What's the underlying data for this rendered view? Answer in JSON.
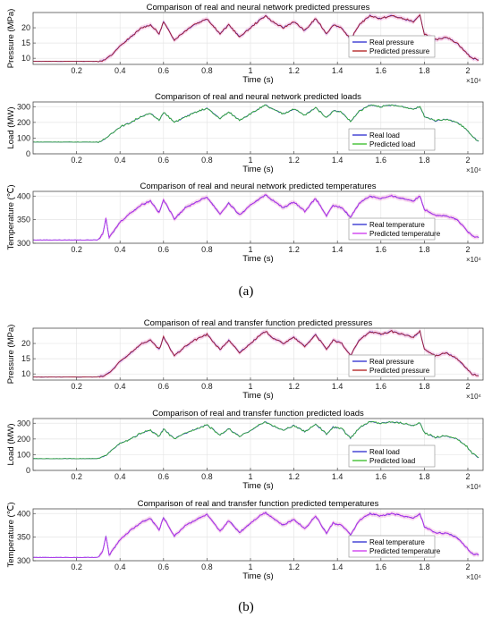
{
  "figure": {
    "caption_a": "(a)",
    "caption_b": "(b)"
  },
  "colors": {
    "real_blue": "#2b2bd0",
    "pred_red": "#b01a1a",
    "pred_green": "#33bb22",
    "pred_magenta": "#cc33ee",
    "band_pink": "#f6c9e8",
    "grid": "#e6e6e6",
    "axis": "#4d4d4d"
  },
  "chart_data": [
    {
      "type": "line",
      "panel": "a",
      "title": "Comparison of real and neural network predicted pressures",
      "xlabel": "Time (s)",
      "ylabel": "Pressure (MPa)",
      "xlim": [
        0,
        20700
      ],
      "ylim": [
        8,
        25
      ],
      "xticks": [
        0.2,
        0.4,
        0.6,
        0.8,
        1,
        1.2,
        1.4,
        1.6,
        1.8,
        2
      ],
      "x_multiplier_label": "×10⁴",
      "yticks": [
        10,
        15,
        20
      ],
      "legend_position": "top-right",
      "series": [
        {
          "name": "Real pressure",
          "color": "#2b2bd0"
        },
        {
          "name": "Predicted pressure",
          "color": "#b01a1a",
          "band": true
        }
      ],
      "x": [
        0,
        1000,
        2000,
        3000,
        3300,
        3600,
        4000,
        4500,
        5000,
        5400,
        5800,
        6000,
        6500,
        7000,
        7400,
        8000,
        8600,
        9000,
        9500,
        10000,
        10500,
        10700,
        11000,
        11500,
        12000,
        12500,
        13000,
        13500,
        13800,
        14200,
        14600,
        15000,
        15500,
        16000,
        16500,
        17000,
        17500,
        17800,
        18000,
        18500,
        19000,
        19500,
        19900,
        20200,
        20500
      ],
      "y": [
        9,
        9,
        9,
        9,
        9.5,
        11,
        14,
        17,
        20,
        21,
        18,
        22,
        16,
        19,
        21,
        23,
        18,
        21,
        17,
        20,
        23,
        24,
        22,
        20,
        22,
        19,
        23,
        18,
        21,
        20,
        16,
        21,
        24,
        23,
        24,
        23,
        22,
        24,
        18,
        16,
        17,
        15,
        12,
        10,
        9.5
      ],
      "x_end": 20500
    },
    {
      "type": "line",
      "panel": "a",
      "title": "Comparison of real and neural network predicted loads",
      "xlabel": "Time (s)",
      "ylabel": "Load (MW)",
      "xlim": [
        0,
        20700
      ],
      "ylim": [
        0,
        330
      ],
      "xticks": [
        0.2,
        0.4,
        0.6,
        0.8,
        1,
        1.2,
        1.4,
        1.6,
        1.8,
        2
      ],
      "x_multiplier_label": "×10⁴",
      "yticks": [
        0,
        100,
        200,
        300
      ],
      "legend_position": "bottom-right",
      "series": [
        {
          "name": "Real load",
          "color": "#2b2bd0"
        },
        {
          "name": "Predicted load",
          "color": "#33bb22",
          "band": false
        }
      ],
      "x": [
        0,
        1000,
        2000,
        3000,
        3300,
        3600,
        4000,
        4500,
        5000,
        5400,
        5800,
        6000,
        6500,
        7000,
        7400,
        8000,
        8600,
        9000,
        9500,
        10000,
        10500,
        10700,
        11000,
        11500,
        12000,
        12500,
        13000,
        13500,
        13800,
        14200,
        14600,
        15000,
        15500,
        16000,
        16500,
        17000,
        17500,
        17800,
        18000,
        18500,
        19000,
        19500,
        19900,
        20200,
        20500
      ],
      "y": [
        75,
        75,
        75,
        75,
        90,
        130,
        170,
        200,
        240,
        255,
        215,
        265,
        200,
        235,
        260,
        290,
        225,
        265,
        215,
        255,
        295,
        310,
        285,
        255,
        285,
        245,
        295,
        230,
        275,
        265,
        205,
        270,
        310,
        300,
        310,
        300,
        285,
        300,
        240,
        210,
        220,
        200,
        160,
        110,
        80
      ],
      "x_end": 20500
    },
    {
      "type": "line",
      "panel": "a",
      "title": "Comparison of real and neural network predicted temperatures",
      "xlabel": "Time (s)",
      "ylabel": "Temperature (℃)",
      "xlim": [
        0,
        20700
      ],
      "ylim": [
        300,
        410
      ],
      "xticks": [
        0.2,
        0.4,
        0.6,
        0.8,
        1,
        1.2,
        1.4,
        1.6,
        1.8,
        2
      ],
      "x_multiplier_label": "×10⁴",
      "yticks": [
        300,
        350,
        400
      ],
      "legend_position": "right",
      "series": [
        {
          "name": "Real temperature",
          "color": "#2b2bd0"
        },
        {
          "name": "Predicted temperature",
          "color": "#cc33ee",
          "band": true
        }
      ],
      "x": [
        0,
        1000,
        2000,
        3000,
        3200,
        3350,
        3500,
        3700,
        4000,
        4500,
        5000,
        5400,
        5800,
        6000,
        6500,
        7000,
        7400,
        8000,
        8600,
        9000,
        9500,
        10000,
        10500,
        10700,
        11000,
        11500,
        12000,
        12500,
        13000,
        13500,
        13800,
        14200,
        14600,
        15000,
        15500,
        16000,
        16500,
        17000,
        17500,
        17800,
        18000,
        18500,
        19000,
        19500,
        19900,
        20200,
        20500
      ],
      "y": [
        307,
        307,
        307,
        307,
        320,
        352,
        312,
        325,
        345,
        365,
        382,
        390,
        365,
        392,
        352,
        375,
        385,
        398,
        362,
        385,
        360,
        380,
        398,
        402,
        392,
        375,
        388,
        368,
        395,
        358,
        380,
        375,
        355,
        385,
        400,
        395,
        400,
        395,
        390,
        400,
        372,
        360,
        358,
        350,
        330,
        315,
        312
      ],
      "x_end": 20500
    },
    {
      "type": "line",
      "panel": "b",
      "title": "Comparison of real and transfer function predicted pressures",
      "xlabel": "Time (s)",
      "ylabel": "Pressure (MPa)",
      "xlim": [
        0,
        20700
      ],
      "ylim": [
        8,
        25
      ],
      "xticks": [
        0.2,
        0.4,
        0.6,
        0.8,
        1,
        1.2,
        1.4,
        1.6,
        1.8,
        2
      ],
      "x_multiplier_label": "×10⁴",
      "yticks": [
        10,
        15,
        20
      ],
      "legend_position": "right",
      "series": [
        {
          "name": "Real pressure",
          "color": "#2b2bd0"
        },
        {
          "name": "Predicted pressure",
          "color": "#b01a1a",
          "band": true
        }
      ],
      "x": [
        0,
        1000,
        2000,
        3000,
        3300,
        3600,
        4000,
        4500,
        5000,
        5400,
        5800,
        6000,
        6500,
        7000,
        7400,
        8000,
        8600,
        9000,
        9500,
        10000,
        10500,
        10700,
        11000,
        11500,
        12000,
        12500,
        13000,
        13500,
        13800,
        14200,
        14600,
        15000,
        15500,
        16000,
        16500,
        17000,
        17500,
        17800,
        18000,
        18500,
        19000,
        19500,
        19900,
        20200,
        20500
      ],
      "y": [
        9,
        9,
        9,
        9,
        9.5,
        11,
        14,
        17,
        20,
        21,
        18,
        22,
        16,
        19,
        21,
        23,
        18,
        21,
        17,
        20,
        23,
        24,
        22,
        20,
        22,
        19,
        23,
        18,
        21,
        20,
        16,
        21,
        24,
        23,
        24,
        23,
        22,
        24,
        18,
        16,
        17,
        15,
        12,
        10,
        9.5
      ],
      "x_end": 20500
    },
    {
      "type": "line",
      "panel": "b",
      "title": "Comparison of real and transfer function predicted loads",
      "xlabel": "Time (s)",
      "ylabel": "Load (MW)",
      "xlim": [
        0,
        20700
      ],
      "ylim": [
        0,
        330
      ],
      "xticks": [
        0.2,
        0.4,
        0.6,
        0.8,
        1,
        1.2,
        1.4,
        1.6,
        1.8,
        2
      ],
      "x_multiplier_label": "×10⁴",
      "yticks": [
        0,
        100,
        200,
        300
      ],
      "legend_position": "bottom-right",
      "series": [
        {
          "name": "Real load",
          "color": "#2b2bd0"
        },
        {
          "name": "Predicted load",
          "color": "#33bb22",
          "band": false
        }
      ],
      "x": [
        0,
        1000,
        2000,
        3000,
        3300,
        3600,
        4000,
        4500,
        5000,
        5400,
        5800,
        6000,
        6500,
        7000,
        7400,
        8000,
        8600,
        9000,
        9500,
        10000,
        10500,
        10700,
        11000,
        11500,
        12000,
        12500,
        13000,
        13500,
        13800,
        14200,
        14600,
        15000,
        15500,
        16000,
        16500,
        17000,
        17500,
        17800,
        18000,
        18500,
        19000,
        19500,
        19900,
        20200,
        20500
      ],
      "y": [
        75,
        75,
        75,
        75,
        90,
        130,
        170,
        200,
        240,
        255,
        215,
        265,
        200,
        235,
        260,
        290,
        225,
        265,
        215,
        255,
        295,
        310,
        285,
        255,
        285,
        245,
        295,
        230,
        275,
        265,
        205,
        270,
        310,
        300,
        310,
        300,
        285,
        300,
        240,
        210,
        220,
        200,
        160,
        110,
        80
      ],
      "x_end": 20500
    },
    {
      "type": "line",
      "panel": "b",
      "title": "Comparison of real and transfer function predicted temperatures",
      "xlabel": "Time (s)",
      "ylabel": "Temperature (℃)",
      "xlim": [
        0,
        20700
      ],
      "ylim": [
        300,
        410
      ],
      "xticks": [
        0.2,
        0.4,
        0.6,
        0.8,
        1,
        1.2,
        1.4,
        1.6,
        1.8,
        2
      ],
      "x_multiplier_label": "×10⁴",
      "yticks": [
        300,
        350,
        400
      ],
      "legend_position": "right",
      "series": [
        {
          "name": "Real temperature",
          "color": "#2b2bd0"
        },
        {
          "name": "Predicted temperature",
          "color": "#cc33ee",
          "band": true
        }
      ],
      "x": [
        0,
        1000,
        2000,
        3000,
        3200,
        3350,
        3500,
        3700,
        4000,
        4500,
        5000,
        5400,
        5800,
        6000,
        6500,
        7000,
        7400,
        8000,
        8600,
        9000,
        9500,
        10000,
        10500,
        10700,
        11000,
        11500,
        12000,
        12500,
        13000,
        13500,
        13800,
        14200,
        14600,
        15000,
        15500,
        16000,
        16500,
        17000,
        17500,
        17800,
        18000,
        18500,
        19000,
        19500,
        19900,
        20200,
        20500
      ],
      "y": [
        307,
        307,
        307,
        307,
        320,
        352,
        312,
        325,
        345,
        365,
        382,
        390,
        365,
        392,
        352,
        375,
        385,
        398,
        362,
        385,
        360,
        380,
        398,
        402,
        392,
        375,
        388,
        368,
        395,
        358,
        380,
        375,
        355,
        385,
        400,
        395,
        400,
        395,
        390,
        400,
        372,
        360,
        358,
        350,
        330,
        315,
        312
      ],
      "x_end": 20500
    }
  ]
}
